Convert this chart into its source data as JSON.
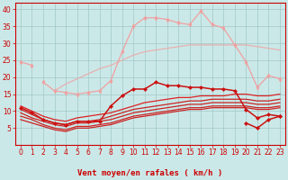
{
  "xlabel": "Vent moyen/en rafales ( km/h )",
  "bg_color": "#cbe8e8",
  "grid_color": "#a0c8c8",
  "x": [
    0,
    1,
    2,
    3,
    4,
    5,
    6,
    7,
    8,
    9,
    10,
    11,
    12,
    13,
    14,
    15,
    16,
    17,
    18,
    19,
    20,
    21,
    22,
    23
  ],
  "lines": [
    {
      "y": [
        24.5,
        23.5,
        null,
        null,
        null,
        null,
        null,
        null,
        null,
        null,
        null,
        null,
        null,
        null,
        null,
        null,
        null,
        null,
        null,
        null,
        null,
        null,
        null,
        null
      ],
      "color": "#f0a0a0",
      "lw": 0.9,
      "marker": "d",
      "ms": 2.5,
      "zorder": 3
    },
    {
      "y": [
        null,
        null,
        18.5,
        16.0,
        15.5,
        15.0,
        15.5,
        16.0,
        19.0,
        27.5,
        35.0,
        37.5,
        37.5,
        37.0,
        36.0,
        35.5,
        39.5,
        35.5,
        34.5,
        29.5,
        24.5,
        17.0,
        20.5,
        19.5
      ],
      "color": "#f0a0a0",
      "lw": 0.9,
      "marker": "d",
      "ms": 2.5,
      "zorder": 3
    },
    {
      "y": [
        11.5,
        10.0,
        null,
        null,
        null,
        null,
        null,
        null,
        null,
        null,
        null,
        null,
        null,
        null,
        null,
        null,
        null,
        null,
        null,
        null,
        null,
        null,
        null,
        null
      ],
      "color": "#e8b0b0",
      "lw": 0.9,
      "marker": null,
      "ms": 0,
      "zorder": 2
    },
    {
      "y": [
        null,
        null,
        null,
        16.0,
        18.0,
        19.5,
        21.0,
        22.5,
        23.5,
        25.0,
        26.5,
        27.5,
        28.0,
        28.5,
        29.0,
        29.5,
        29.5,
        29.5,
        29.5,
        29.5,
        29.5,
        29.0,
        28.5,
        28.0
      ],
      "color": "#e8b0b0",
      "lw": 0.9,
      "marker": null,
      "ms": 0,
      "zorder": 2
    },
    {
      "y": [
        11.0,
        9.5,
        7.5,
        6.5,
        6.0,
        7.0,
        7.0,
        7.0,
        11.5,
        14.5,
        16.5,
        16.5,
        18.5,
        17.5,
        17.5,
        17.0,
        17.0,
        16.5,
        16.5,
        16.0,
        10.5,
        8.0,
        9.0,
        8.5
      ],
      "color": "#cc1111",
      "lw": 1.1,
      "marker": "D",
      "ms": 2.0,
      "zorder": 5
    },
    {
      "y": [
        11.5,
        10.0,
        8.5,
        7.5,
        7.0,
        8.0,
        8.5,
        9.0,
        9.5,
        10.5,
        11.5,
        12.5,
        13.0,
        13.5,
        14.0,
        14.0,
        14.5,
        14.5,
        14.5,
        15.0,
        15.0,
        14.5,
        14.5,
        15.0
      ],
      "color": "#dd2222",
      "lw": 0.9,
      "marker": null,
      "ms": 0,
      "zorder": 4
    },
    {
      "y": [
        10.5,
        9.0,
        7.5,
        6.5,
        6.0,
        7.0,
        7.0,
        7.5,
        8.5,
        9.5,
        10.5,
        11.0,
        11.5,
        12.0,
        12.5,
        13.0,
        13.0,
        13.5,
        13.5,
        13.5,
        13.5,
        13.0,
        13.0,
        13.5
      ],
      "color": "#cc2222",
      "lw": 0.9,
      "marker": null,
      "ms": 0,
      "zorder": 4
    },
    {
      "y": [
        9.5,
        8.0,
        7.0,
        6.0,
        5.5,
        6.5,
        6.5,
        7.0,
        7.5,
        8.5,
        9.5,
        10.0,
        10.5,
        11.0,
        11.5,
        12.0,
        12.0,
        12.5,
        12.5,
        12.5,
        12.5,
        12.0,
        12.0,
        12.5
      ],
      "color": "#cc2222",
      "lw": 0.9,
      "marker": null,
      "ms": 0,
      "zorder": 4
    },
    {
      "y": [
        8.5,
        7.5,
        6.0,
        5.0,
        4.5,
        5.5,
        5.5,
        6.0,
        6.5,
        7.5,
        8.5,
        9.0,
        9.5,
        10.0,
        10.5,
        11.0,
        11.0,
        11.5,
        11.5,
        11.5,
        11.5,
        11.0,
        11.0,
        11.5
      ],
      "color": "#cc2222",
      "lw": 0.9,
      "marker": null,
      "ms": 0,
      "zorder": 4
    },
    {
      "y": [
        7.5,
        6.5,
        5.5,
        4.5,
        4.0,
        5.0,
        5.0,
        5.5,
        6.0,
        7.0,
        8.0,
        8.5,
        9.0,
        9.5,
        10.0,
        10.5,
        10.5,
        11.0,
        11.0,
        11.0,
        11.0,
        10.5,
        10.5,
        11.0
      ],
      "color": "#cc2222",
      "lw": 0.9,
      "marker": null,
      "ms": 0,
      "zorder": 4
    },
    {
      "y": [
        null,
        null,
        null,
        null,
        null,
        null,
        null,
        null,
        null,
        null,
        null,
        null,
        null,
        null,
        null,
        null,
        null,
        null,
        null,
        null,
        6.5,
        5.0,
        7.5,
        8.5
      ],
      "color": "#cc1111",
      "lw": 1.1,
      "marker": "D",
      "ms": 2.0,
      "zorder": 5
    }
  ],
  "ylim": [
    0,
    42
  ],
  "yticks": [
    5,
    10,
    15,
    20,
    25,
    30,
    35,
    40
  ],
  "xticks": [
    0,
    1,
    2,
    3,
    4,
    5,
    6,
    7,
    8,
    9,
    10,
    11,
    12,
    13,
    14,
    15,
    16,
    17,
    18,
    19,
    20,
    21,
    22,
    23
  ],
  "tick_color": "#cc0000",
  "axis_color": "#cc0000",
  "label_color": "#cc0000",
  "label_fontsize": 6.5,
  "tick_fontsize": 5.5
}
